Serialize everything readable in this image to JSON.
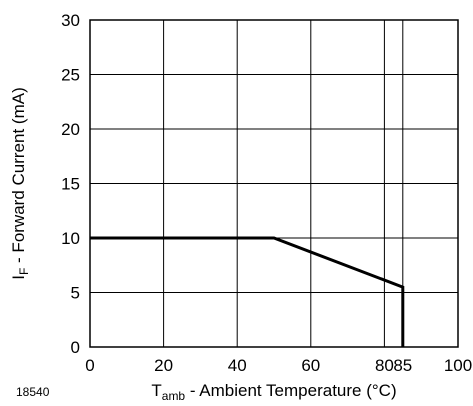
{
  "chart_data": {
    "type": "line",
    "figure_number": "18540",
    "xlabel": {
      "symbol": "T",
      "subscript": "amb",
      "text": " - Ambient Temperature (°C)"
    },
    "ylabel": {
      "symbol": "I",
      "subscript": "F",
      "text": " - Forward Current (mA)"
    },
    "xlim": [
      0,
      100
    ],
    "ylim": [
      0,
      30
    ],
    "x_ticks": [
      0,
      20,
      40,
      60,
      80,
      85,
      100
    ],
    "y_ticks": [
      0,
      5,
      10,
      15,
      20,
      25,
      30
    ],
    "x_gridlines": [
      20,
      40,
      60,
      80,
      85
    ],
    "y_gridlines": [
      5,
      10,
      15,
      20,
      25
    ],
    "grid": true,
    "series": [
      {
        "x": [
          0,
          50,
          85,
          85
        ],
        "y": [
          10,
          10,
          5.5,
          0
        ]
      }
    ]
  }
}
